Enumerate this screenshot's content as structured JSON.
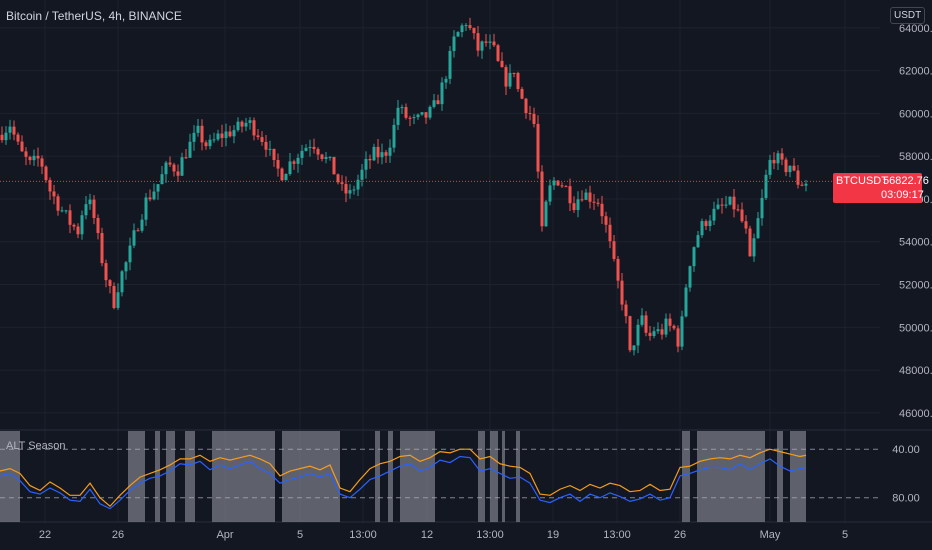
{
  "header": {
    "title": "Bitcoin / TetherUS, 4h, BINANCE",
    "currency_button": "USDT"
  },
  "price_tag": {
    "symbol": "BTCUSDT",
    "last_price": "56822.76",
    "countdown": "03:09:17"
  },
  "indicator": {
    "title": "ALT Season",
    "levels": [
      "80.00",
      "40.00"
    ]
  },
  "colors": {
    "up": "#26a69a",
    "down": "#ef5350",
    "orange_line": "#f59c1a",
    "blue_line": "#2962ff",
    "shade": "#787b86",
    "price_line": "#f23645"
  },
  "chart_data": [
    {
      "type": "candlestick",
      "title": "Bitcoin / TetherUS, 4h, BINANCE",
      "x_ticks": [
        "22",
        "26",
        "Apr",
        "5",
        "13:00",
        "12",
        "13:00",
        "19",
        "13:00",
        "26",
        "May",
        "5"
      ],
      "y_ticks": [
        46000,
        48000,
        50000,
        52000,
        54000,
        56000,
        58000,
        60000,
        62000,
        64000
      ],
      "ylim": [
        45200,
        65300
      ],
      "last_price": 56822.76,
      "path": [
        [
          0,
          59000
        ],
        [
          10,
          59500
        ],
        [
          20,
          58200
        ],
        [
          30,
          57600
        ],
        [
          40,
          57900
        ],
        [
          50,
          56400
        ],
        [
          60,
          55600
        ],
        [
          70,
          54900
        ],
        [
          78,
          54500
        ],
        [
          85,
          56000
        ],
        [
          92,
          55600
        ],
        [
          100,
          53600
        ],
        [
          108,
          51900
        ],
        [
          114,
          51200
        ],
        [
          120,
          52300
        ],
        [
          128,
          53200
        ],
        [
          136,
          54600
        ],
        [
          146,
          55900
        ],
        [
          158,
          56700
        ],
        [
          168,
          57600
        ],
        [
          178,
          57400
        ],
        [
          188,
          58400
        ],
        [
          198,
          59100
        ],
        [
          208,
          58400
        ],
        [
          218,
          58900
        ],
        [
          228,
          59100
        ],
        [
          238,
          59300
        ],
        [
          248,
          59600
        ],
        [
          258,
          59100
        ],
        [
          266,
          58600
        ],
        [
          274,
          57500
        ],
        [
          282,
          57200
        ],
        [
          292,
          57800
        ],
        [
          302,
          58300
        ],
        [
          312,
          58700
        ],
        [
          322,
          58100
        ],
        [
          332,
          57500
        ],
        [
          342,
          56400
        ],
        [
          350,
          56200
        ],
        [
          358,
          56900
        ],
        [
          366,
          57600
        ],
        [
          374,
          58100
        ],
        [
          384,
          58000
        ],
        [
          392,
          58900
        ],
        [
          398,
          60300
        ],
        [
          404,
          59900
        ],
        [
          414,
          59600
        ],
        [
          424,
          59800
        ],
        [
          432,
          60100
        ],
        [
          440,
          60900
        ],
        [
          448,
          62200
        ],
        [
          454,
          63400
        ],
        [
          460,
          63900
        ],
        [
          466,
          64300
        ],
        [
          472,
          63700
        ],
        [
          478,
          63000
        ],
        [
          486,
          63300
        ],
        [
          494,
          62900
        ],
        [
          500,
          62000
        ],
        [
          508,
          61400
        ],
        [
          514,
          62100
        ],
        [
          518,
          61100
        ],
        [
          524,
          60500
        ],
        [
          530,
          60000
        ],
        [
          534,
          59500
        ],
        [
          538,
          57200
        ],
        [
          542,
          54400
        ],
        [
          548,
          56300
        ],
        [
          556,
          57000
        ],
        [
          566,
          56500
        ],
        [
          574,
          55800
        ],
        [
          582,
          56300
        ],
        [
          590,
          56100
        ],
        [
          598,
          55900
        ],
        [
          604,
          55100
        ],
        [
          610,
          53800
        ],
        [
          616,
          52400
        ],
        [
          622,
          51300
        ],
        [
          626,
          50300
        ],
        [
          630,
          48700
        ],
        [
          636,
          49700
        ],
        [
          642,
          50300
        ],
        [
          648,
          49400
        ],
        [
          654,
          49900
        ],
        [
          660,
          49700
        ],
        [
          666,
          50100
        ],
        [
          674,
          49900
        ],
        [
          680,
          49100
        ],
        [
          684,
          51400
        ],
        [
          690,
          53100
        ],
        [
          696,
          54200
        ],
        [
          704,
          54900
        ],
        [
          712,
          55300
        ],
        [
          722,
          55600
        ],
        [
          732,
          55800
        ],
        [
          740,
          55200
        ],
        [
          746,
          54400
        ],
        [
          750,
          53000
        ],
        [
          756,
          54500
        ],
        [
          762,
          55900
        ],
        [
          766,
          57000
        ],
        [
          772,
          58100
        ],
        [
          778,
          57800
        ],
        [
          784,
          57400
        ],
        [
          790,
          57600
        ],
        [
          796,
          56900
        ],
        [
          800,
          56700
        ],
        [
          804,
          56800
        ]
      ]
    },
    {
      "type": "line",
      "title": "ALT Season",
      "ylim": [
        20,
        95
      ],
      "y_ticks": [
        40,
        80
      ],
      "series": [
        {
          "color": "#f59c1a",
          "points": [
            [
              0,
              62
            ],
            [
              10,
              64
            ],
            [
              20,
              60
            ],
            [
              30,
              50
            ],
            [
              40,
              46
            ],
            [
              50,
              53
            ],
            [
              60,
              48
            ],
            [
              70,
              42
            ],
            [
              80,
              42
            ],
            [
              90,
              52
            ],
            [
              100,
              40
            ],
            [
              110,
              33
            ],
            [
              120,
              42
            ],
            [
              130,
              50
            ],
            [
              140,
              57
            ],
            [
              150,
              60
            ],
            [
              160,
              63
            ],
            [
              170,
              67
            ],
            [
              180,
              72
            ],
            [
              190,
              72
            ],
            [
              200,
              75
            ],
            [
              210,
              70
            ],
            [
              220,
              73
            ],
            [
              230,
              71
            ],
            [
              240,
              73
            ],
            [
              250,
              75
            ],
            [
              260,
              72
            ],
            [
              270,
              68
            ],
            [
              280,
              58
            ],
            [
              290,
              62
            ],
            [
              300,
              64
            ],
            [
              310,
              66
            ],
            [
              320,
              63
            ],
            [
              330,
              67
            ],
            [
              340,
              48
            ],
            [
              350,
              45
            ],
            [
              360,
              55
            ],
            [
              370,
              64
            ],
            [
              380,
              68
            ],
            [
              390,
              70
            ],
            [
              400,
              74
            ],
            [
              410,
              75
            ],
            [
              420,
              70
            ],
            [
              430,
              73
            ],
            [
              440,
              78
            ],
            [
              450,
              77
            ],
            [
              460,
              80
            ],
            [
              470,
              80
            ],
            [
              480,
              72
            ],
            [
              490,
              74
            ],
            [
              500,
              68
            ],
            [
              510,
              66
            ],
            [
              520,
              65
            ],
            [
              530,
              60
            ],
            [
              540,
              43
            ],
            [
              550,
              42
            ],
            [
              560,
              47
            ],
            [
              570,
              50
            ],
            [
              580,
              46
            ],
            [
              590,
              51
            ],
            [
              600,
              48
            ],
            [
              610,
              52
            ],
            [
              620,
              50
            ],
            [
              630,
              45
            ],
            [
              640,
              46
            ],
            [
              650,
              51
            ],
            [
              660,
              46
            ],
            [
              670,
              47
            ],
            [
              680,
              65
            ],
            [
              690,
              66
            ],
            [
              700,
              70
            ],
            [
              710,
              72
            ],
            [
              720,
              73
            ],
            [
              730,
              72
            ],
            [
              740,
              75
            ],
            [
              750,
              73
            ],
            [
              760,
              77
            ],
            [
              770,
              80
            ],
            [
              780,
              78
            ],
            [
              790,
              76
            ],
            [
              800,
              74
            ],
            [
              806,
              75
            ]
          ]
        },
        {
          "color": "#2962ff",
          "points": [
            [
              0,
              58
            ],
            [
              10,
              60
            ],
            [
              20,
              54
            ],
            [
              30,
              45
            ],
            [
              40,
              43
            ],
            [
              50,
              48
            ],
            [
              60,
              44
            ],
            [
              70,
              38
            ],
            [
              80,
              37
            ],
            [
              90,
              47
            ],
            [
              100,
              35
            ],
            [
              110,
              31
            ],
            [
              120,
              38
            ],
            [
              130,
              46
            ],
            [
              140,
              52
            ],
            [
              150,
              56
            ],
            [
              160,
              58
            ],
            [
              170,
              62
            ],
            [
              180,
              68
            ],
            [
              190,
              67
            ],
            [
              200,
              70
            ],
            [
              210,
              63
            ],
            [
              220,
              67
            ],
            [
              230,
              64
            ],
            [
              240,
              67
            ],
            [
              250,
              70
            ],
            [
              260,
              64
            ],
            [
              270,
              60
            ],
            [
              280,
              52
            ],
            [
              290,
              55
            ],
            [
              300,
              57
            ],
            [
              310,
              60
            ],
            [
              320,
              57
            ],
            [
              330,
              60
            ],
            [
              340,
              43
            ],
            [
              350,
              40
            ],
            [
              360,
              47
            ],
            [
              370,
              55
            ],
            [
              380,
              58
            ],
            [
              390,
              62
            ],
            [
              400,
              66
            ],
            [
              410,
              68
            ],
            [
              420,
              62
            ],
            [
              430,
              65
            ],
            [
              440,
              71
            ],
            [
              450,
              69
            ],
            [
              460,
              74
            ],
            [
              470,
              73
            ],
            [
              480,
              62
            ],
            [
              490,
              64
            ],
            [
              500,
              60
            ],
            [
              510,
              56
            ],
            [
              520,
              57
            ],
            [
              530,
              52
            ],
            [
              540,
              38
            ],
            [
              550,
              36
            ],
            [
              560,
              40
            ],
            [
              570,
              43
            ],
            [
              580,
              37
            ],
            [
              590,
              43
            ],
            [
              600,
              40
            ],
            [
              610,
              44
            ],
            [
              620,
              41
            ],
            [
              630,
              37
            ],
            [
              640,
              39
            ],
            [
              650,
              43
            ],
            [
              660,
              38
            ],
            [
              670,
              40
            ],
            [
              680,
              58
            ],
            [
              690,
              60
            ],
            [
              700,
              63
            ],
            [
              710,
              65
            ],
            [
              720,
              65
            ],
            [
              730,
              63
            ],
            [
              740,
              68
            ],
            [
              750,
              63
            ],
            [
              760,
              68
            ],
            [
              770,
              72
            ],
            [
              780,
              66
            ],
            [
              790,
              62
            ],
            [
              800,
              64
            ],
            [
              806,
              65
            ]
          ]
        }
      ],
      "shaded_ranges": [
        [
          0,
          20
        ],
        [
          128,
          145
        ],
        [
          155,
          160
        ],
        [
          166,
          175
        ],
        [
          185,
          195
        ],
        [
          212,
          275
        ],
        [
          282,
          340
        ],
        [
          375,
          380
        ],
        [
          388,
          393
        ],
        [
          400,
          435
        ],
        [
          478,
          485
        ],
        [
          490,
          498
        ],
        [
          502,
          505
        ],
        [
          516,
          520
        ],
        [
          682,
          690
        ],
        [
          697,
          765
        ],
        [
          777,
          783
        ],
        [
          790,
          806
        ]
      ]
    }
  ]
}
